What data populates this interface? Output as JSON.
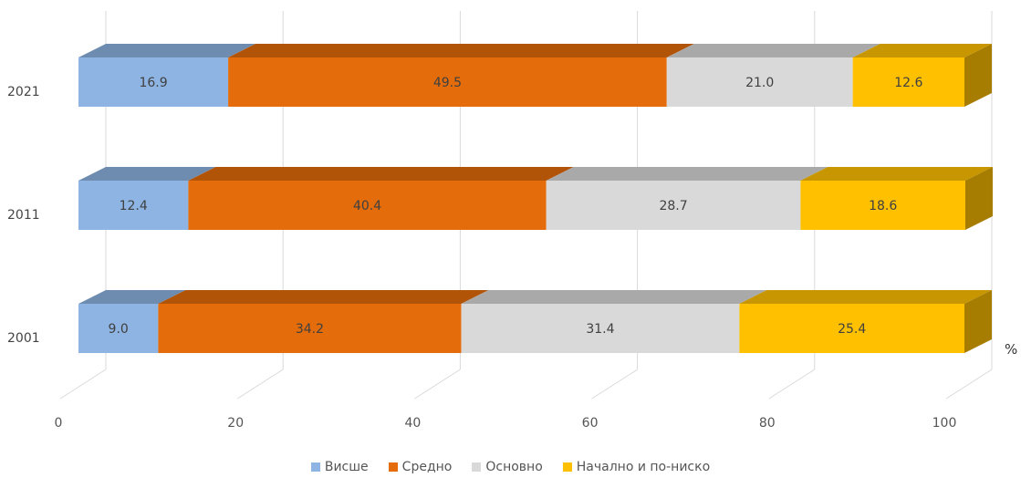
{
  "chart_data": {
    "type": "bar",
    "orientation": "horizontal",
    "stacked": true,
    "style": "3d",
    "categories": [
      "2001",
      "2011",
      "2021"
    ],
    "series": [
      {
        "name": "Висше",
        "values": [
          9.0,
          12.4,
          16.9
        ],
        "color": "#8DB4E2",
        "labels": [
          "9.0",
          "12.4",
          "16.9"
        ]
      },
      {
        "name": "Средно",
        "values": [
          34.2,
          40.4,
          49.5
        ],
        "color": "#E46C0A",
        "labels": [
          "34.2",
          "40.4",
          "49.5"
        ]
      },
      {
        "name": "Основно",
        "values": [
          31.4,
          28.7,
          21.0
        ],
        "color": "#D9D9D9",
        "labels": [
          "31.4",
          "28.7",
          "21.0"
        ]
      },
      {
        "name": "Начално и по-ниско",
        "values": [
          25.4,
          18.6,
          12.6
        ],
        "color": "#FFC000",
        "labels": [
          "25.4",
          "18.6",
          "12.6"
        ]
      }
    ],
    "x_ticks": [
      "0",
      "20",
      "40",
      "60",
      "80",
      "100"
    ],
    "xlim": [
      0,
      100
    ],
    "unit_label": "%",
    "grid": true,
    "legend_position": "bottom"
  }
}
